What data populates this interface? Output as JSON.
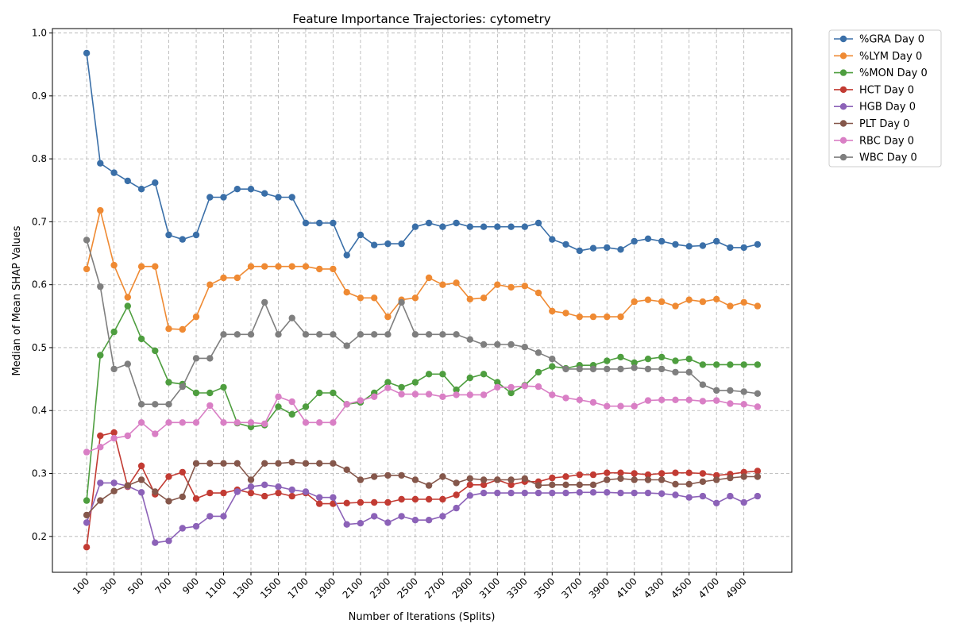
{
  "chart_data": {
    "type": "line",
    "title": "Feature Importance Trajectories: cytometry",
    "xlabel": "Number of Iterations (Splits)",
    "ylabel": "Median of Mean SHAP Values",
    "xlim": [
      -150,
      5250
    ],
    "ylim": [
      0.143,
      1.007
    ],
    "x": [
      100,
      200,
      300,
      400,
      500,
      600,
      700,
      800,
      900,
      1000,
      1100,
      1200,
      1300,
      1400,
      1500,
      1600,
      1700,
      1800,
      1900,
      2000,
      2100,
      2200,
      2300,
      2400,
      2500,
      2600,
      2700,
      2800,
      2900,
      3000,
      3100,
      3200,
      3300,
      3400,
      3500,
      3600,
      3700,
      3800,
      3900,
      4000,
      4100,
      4200,
      4300,
      4400,
      4500,
      4600,
      4700,
      4800,
      4900,
      5000
    ],
    "xticks": [
      100,
      300,
      500,
      700,
      900,
      1100,
      1300,
      1500,
      1700,
      1900,
      2100,
      2300,
      2500,
      2700,
      2900,
      3100,
      3300,
      3500,
      3700,
      3900,
      4100,
      4300,
      4500,
      4700,
      4900
    ],
    "yticks": [
      0.2,
      0.3,
      0.4,
      0.5,
      0.6,
      0.7,
      0.8,
      0.9,
      1.0
    ],
    "ytick_labels": [
      "0.2",
      "0.3",
      "0.4",
      "0.5",
      "0.6",
      "0.7",
      "0.8",
      "0.9",
      "1.0"
    ],
    "legend_position": "outside top-right",
    "grid": true,
    "series": [
      {
        "name": "%GRA Day 0",
        "color": "#3a6fa8",
        "values": [
          0.968,
          0.793,
          0.778,
          0.765,
          0.752,
          0.762,
          0.679,
          0.672,
          0.679,
          0.739,
          0.739,
          0.752,
          0.752,
          0.745,
          0.739,
          0.739,
          0.698,
          0.698,
          0.698,
          0.647,
          0.679,
          0.663,
          0.665,
          0.665,
          0.692,
          0.698,
          0.692,
          0.698,
          0.692,
          0.692,
          0.692,
          0.692,
          0.692,
          0.698,
          0.672,
          0.664,
          0.654,
          0.658,
          0.659,
          0.656,
          0.669,
          0.673,
          0.669,
          0.664,
          0.661,
          0.662,
          0.669,
          0.659,
          0.659,
          0.664
        ]
      },
      {
        "name": "%LYM Day 0",
        "color": "#ef8a33",
        "values": [
          0.625,
          0.718,
          0.631,
          0.58,
          0.629,
          0.629,
          0.53,
          0.529,
          0.549,
          0.6,
          0.611,
          0.611,
          0.629,
          0.629,
          0.629,
          0.629,
          0.629,
          0.625,
          0.625,
          0.588,
          0.579,
          0.579,
          0.549,
          0.576,
          0.579,
          0.611,
          0.6,
          0.603,
          0.577,
          0.579,
          0.6,
          0.596,
          0.598,
          0.587,
          0.558,
          0.555,
          0.549,
          0.549,
          0.549,
          0.549,
          0.573,
          0.576,
          0.573,
          0.566,
          0.576,
          0.573,
          0.577,
          0.566,
          0.572,
          0.566
        ]
      },
      {
        "name": "%MON Day 0",
        "color": "#4e9e3f",
        "values": [
          0.257,
          0.488,
          0.525,
          0.566,
          0.514,
          0.495,
          0.445,
          0.442,
          0.428,
          0.428,
          0.437,
          0.38,
          0.374,
          0.377,
          0.406,
          0.394,
          0.406,
          0.428,
          0.428,
          0.41,
          0.413,
          0.428,
          0.445,
          0.437,
          0.445,
          0.458,
          0.458,
          0.433,
          0.452,
          0.458,
          0.445,
          0.428,
          0.44,
          0.461,
          0.47,
          0.467,
          0.472,
          0.472,
          0.479,
          0.485,
          0.476,
          0.482,
          0.485,
          0.479,
          0.482,
          0.473,
          0.473,
          0.473,
          0.473,
          0.473
        ]
      },
      {
        "name": "HCT Day 0",
        "color": "#c23b33",
        "values": [
          0.183,
          0.36,
          0.365,
          0.279,
          0.312,
          0.267,
          0.295,
          0.302,
          0.26,
          0.269,
          0.269,
          0.274,
          0.269,
          0.264,
          0.269,
          0.264,
          0.269,
          0.252,
          0.252,
          0.253,
          0.254,
          0.254,
          0.254,
          0.259,
          0.259,
          0.259,
          0.259,
          0.266,
          0.282,
          0.282,
          0.29,
          0.282,
          0.287,
          0.287,
          0.293,
          0.295,
          0.298,
          0.298,
          0.301,
          0.301,
          0.3,
          0.298,
          0.3,
          0.301,
          0.301,
          0.3,
          0.297,
          0.299,
          0.302,
          0.304
        ]
      },
      {
        "name": "HGB Day 0",
        "color": "#8c62b8",
        "values": [
          0.222,
          0.285,
          0.285,
          0.28,
          0.27,
          0.19,
          0.193,
          0.213,
          0.216,
          0.232,
          0.232,
          0.271,
          0.279,
          0.282,
          0.279,
          0.274,
          0.271,
          0.262,
          0.262,
          0.219,
          0.221,
          0.232,
          0.222,
          0.232,
          0.226,
          0.226,
          0.232,
          0.245,
          0.265,
          0.269,
          0.269,
          0.269,
          0.269,
          0.269,
          0.269,
          0.269,
          0.27,
          0.27,
          0.27,
          0.269,
          0.269,
          0.269,
          0.268,
          0.266,
          0.262,
          0.264,
          0.253,
          0.264,
          0.254,
          0.264
        ]
      },
      {
        "name": "PLT Day 0",
        "color": "#85574b",
        "values": [
          0.234,
          0.257,
          0.272,
          0.281,
          0.29,
          0.271,
          0.256,
          0.263,
          0.316,
          0.316,
          0.316,
          0.316,
          0.29,
          0.316,
          0.316,
          0.318,
          0.316,
          0.316,
          0.316,
          0.306,
          0.29,
          0.295,
          0.297,
          0.297,
          0.29,
          0.281,
          0.295,
          0.285,
          0.292,
          0.29,
          0.29,
          0.29,
          0.292,
          0.281,
          0.282,
          0.282,
          0.282,
          0.282,
          0.29,
          0.292,
          0.29,
          0.29,
          0.29,
          0.283,
          0.283,
          0.287,
          0.29,
          0.293,
          0.295,
          0.295
        ]
      },
      {
        "name": "RBC Day 0",
        "color": "#d97fc5",
        "values": [
          0.334,
          0.342,
          0.356,
          0.36,
          0.381,
          0.363,
          0.381,
          0.381,
          0.381,
          0.408,
          0.381,
          0.381,
          0.381,
          0.379,
          0.422,
          0.414,
          0.381,
          0.381,
          0.381,
          0.41,
          0.416,
          0.422,
          0.436,
          0.426,
          0.426,
          0.426,
          0.422,
          0.425,
          0.425,
          0.425,
          0.437,
          0.437,
          0.439,
          0.438,
          0.425,
          0.42,
          0.417,
          0.413,
          0.407,
          0.407,
          0.407,
          0.416,
          0.417,
          0.417,
          0.417,
          0.415,
          0.416,
          0.411,
          0.41,
          0.406
        ]
      },
      {
        "name": "WBC Day 0",
        "color": "#7f7f7f",
        "values": [
          0.671,
          0.597,
          0.466,
          0.474,
          0.41,
          0.41,
          0.41,
          0.438,
          0.483,
          0.483,
          0.521,
          0.521,
          0.521,
          0.572,
          0.521,
          0.547,
          0.521,
          0.521,
          0.521,
          0.503,
          0.521,
          0.521,
          0.521,
          0.572,
          0.521,
          0.521,
          0.521,
          0.521,
          0.513,
          0.505,
          0.505,
          0.505,
          0.501,
          0.492,
          0.482,
          0.466,
          0.466,
          0.466,
          0.466,
          0.466,
          0.468,
          0.466,
          0.466,
          0.461,
          0.461,
          0.441,
          0.432,
          0.432,
          0.43,
          0.427
        ]
      }
    ]
  }
}
